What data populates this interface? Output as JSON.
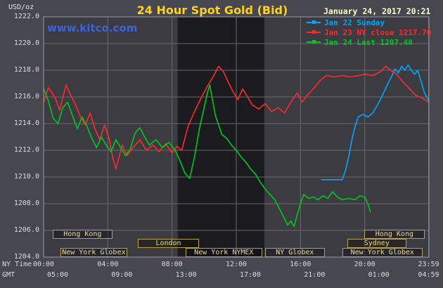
{
  "header": {
    "title": "24 Hour Spot Gold (Bid)",
    "unit": "USD/oz",
    "datetime": "January 24, 2017 20:21",
    "watermark": "www.kitco.com"
  },
  "axis": {
    "ny_label": "NY Time",
    "gmt_label": "GMT"
  },
  "colors": {
    "background": "#47474f",
    "plot_bg": "#3b3b41",
    "band_bg": "#1b1b1f",
    "grid": "#68686e",
    "plot_border": "#9a9aa2",
    "title": "#ffd21e",
    "watermark": "#3e63d8",
    "datetime": "#fcfcce",
    "tick_text": "#dcdcdc",
    "session_border": "#b9a14c",
    "session_text": "#ead989"
  },
  "chart_data": {
    "type": "line",
    "title": "24 Hour Spot Gold (Bid)",
    "ylabel": "USD/oz",
    "ylim": [
      1204.0,
      1222.0
    ],
    "ytick_step": 2.0,
    "grid": true,
    "legend_position": "top-right",
    "stats": {
      "ny_close": 1217.7,
      "last": 1207.4
    },
    "shaded_hours": [
      8.35,
      13.75
    ],
    "yticks": [
      {
        "v": 1204,
        "label": "1204.0"
      },
      {
        "v": 1206,
        "label": "1206.0"
      },
      {
        "v": 1208,
        "label": "1208.0"
      },
      {
        "v": 1210,
        "label": "1210.0"
      },
      {
        "v": 1212,
        "label": "1212.0"
      },
      {
        "v": 1214,
        "label": "1214.0"
      },
      {
        "v": 1216,
        "label": "1216.0"
      },
      {
        "v": 1218,
        "label": "1218.0"
      },
      {
        "v": 1220,
        "label": "1220.0"
      },
      {
        "v": 1222,
        "label": "1222.0"
      }
    ],
    "xticks": [
      {
        "h": 0,
        "ny": "00:00",
        "gmt": "05:00"
      },
      {
        "h": 4,
        "ny": "04:00",
        "gmt": "09:00"
      },
      {
        "h": 8,
        "ny": "08:00",
        "gmt": "13:00"
      },
      {
        "h": 12,
        "ny": "12:00",
        "gmt": "17:00"
      },
      {
        "h": 16,
        "ny": "16:00",
        "gmt": "21:00"
      },
      {
        "h": 20,
        "ny": "20:00",
        "gmt": "01:00"
      },
      {
        "h": 23.98,
        "ny": "23:59",
        "gmt": "04:59"
      }
    ],
    "sessions": [
      {
        "label": "Hong Kong",
        "row": 0,
        "start": 0.55,
        "end": 4.3
      },
      {
        "label": "Hong Kong",
        "row": 0,
        "start": 19.95,
        "end": 23.75
      },
      {
        "label": "London",
        "row": 1,
        "start": 5.85,
        "end": 9.7
      },
      {
        "label": "Sydney",
        "row": 1,
        "start": 18.9,
        "end": 22.6
      },
      {
        "label": "New York Globex",
        "row": 2,
        "start": 1.05,
        "end": 5.2
      },
      {
        "label": "New York NYMEX",
        "row": 2,
        "start": 8.85,
        "end": 13.6
      },
      {
        "label": "NY Globex",
        "row": 2,
        "start": 13.8,
        "end": 17.5
      },
      {
        "label": "New York Globex",
        "row": 2,
        "start": 18.6,
        "end": 23.6
      }
    ],
    "series": [
      {
        "name": "Jan 22 Sunday",
        "color": "#00a6ff",
        "points": [
          [
            17.3,
            1209.8
          ],
          [
            18.6,
            1209.8
          ],
          [
            18.8,
            1210.5
          ],
          [
            19.0,
            1211.5
          ],
          [
            19.2,
            1212.8
          ],
          [
            19.4,
            1213.8
          ],
          [
            19.6,
            1214.5
          ],
          [
            19.9,
            1214.7
          ],
          [
            20.2,
            1214.5
          ],
          [
            20.5,
            1214.8
          ],
          [
            20.8,
            1215.4
          ],
          [
            21.1,
            1216.1
          ],
          [
            21.4,
            1216.9
          ],
          [
            21.7,
            1217.6
          ],
          [
            21.9,
            1218.1
          ],
          [
            22.1,
            1217.8
          ],
          [
            22.3,
            1218.3
          ],
          [
            22.5,
            1218.0
          ],
          [
            22.7,
            1218.4
          ],
          [
            22.9,
            1218.0
          ],
          [
            23.1,
            1217.7
          ],
          [
            23.3,
            1218.0
          ],
          [
            23.5,
            1217.2
          ],
          [
            23.7,
            1216.4
          ],
          [
            23.9,
            1215.9
          ],
          [
            23.98,
            1215.7
          ]
        ]
      },
      {
        "name": "Jan 23 NY close 1217.70",
        "color": "#ff2a2a",
        "points": [
          [
            0,
            1215.6
          ],
          [
            0.3,
            1216.7
          ],
          [
            0.7,
            1216.0
          ],
          [
            1.0,
            1215.0
          ],
          [
            1.4,
            1216.9
          ],
          [
            1.7,
            1216.1
          ],
          [
            2.0,
            1215.4
          ],
          [
            2.3,
            1214.5
          ],
          [
            2.6,
            1213.9
          ],
          [
            2.9,
            1214.8
          ],
          [
            3.2,
            1213.6
          ],
          [
            3.5,
            1212.8
          ],
          [
            3.8,
            1213.9
          ],
          [
            4.1,
            1212.8
          ],
          [
            4.3,
            1211.5
          ],
          [
            4.5,
            1210.6
          ],
          [
            4.9,
            1212.4
          ],
          [
            5.2,
            1211.6
          ],
          [
            5.5,
            1212.1
          ],
          [
            6.0,
            1212.8
          ],
          [
            6.4,
            1212.0
          ],
          [
            6.8,
            1212.4
          ],
          [
            7.2,
            1211.9
          ],
          [
            7.6,
            1212.5
          ],
          [
            8.0,
            1211.8
          ],
          [
            8.3,
            1212.3
          ],
          [
            8.6,
            1212.0
          ],
          [
            9.0,
            1213.8
          ],
          [
            9.4,
            1214.9
          ],
          [
            9.8,
            1215.9
          ],
          [
            10.2,
            1216.8
          ],
          [
            10.6,
            1217.6
          ],
          [
            10.9,
            1218.3
          ],
          [
            11.2,
            1217.9
          ],
          [
            11.5,
            1217.1
          ],
          [
            11.8,
            1216.4
          ],
          [
            12.1,
            1215.8
          ],
          [
            12.4,
            1216.6
          ],
          [
            12.7,
            1216.0
          ],
          [
            13.0,
            1215.4
          ],
          [
            13.4,
            1215.1
          ],
          [
            13.8,
            1215.5
          ],
          [
            14.2,
            1214.9
          ],
          [
            14.6,
            1215.2
          ],
          [
            15.0,
            1214.8
          ],
          [
            15.4,
            1215.6
          ],
          [
            15.8,
            1216.3
          ],
          [
            16.1,
            1215.6
          ],
          [
            16.4,
            1216.1
          ],
          [
            16.8,
            1216.6
          ],
          [
            17.2,
            1217.2
          ],
          [
            17.6,
            1217.6
          ],
          [
            18.1,
            1217.5
          ],
          [
            18.6,
            1217.6
          ],
          [
            19.1,
            1217.5
          ],
          [
            19.6,
            1217.6
          ],
          [
            20.0,
            1217.7
          ],
          [
            20.5,
            1217.6
          ],
          [
            21.0,
            1217.9
          ],
          [
            21.3,
            1218.3
          ],
          [
            21.6,
            1218.0
          ],
          [
            22.0,
            1217.7
          ],
          [
            22.4,
            1217.1
          ],
          [
            22.8,
            1216.6
          ],
          [
            23.2,
            1216.1
          ],
          [
            23.6,
            1215.9
          ],
          [
            23.98,
            1215.6
          ]
        ]
      },
      {
        "name": "Jan 24 Last 1207.40",
        "color": "#00c81e",
        "points": [
          [
            0,
            1216.6
          ],
          [
            0.3,
            1215.7
          ],
          [
            0.6,
            1214.4
          ],
          [
            0.9,
            1214.0
          ],
          [
            1.2,
            1215.2
          ],
          [
            1.5,
            1215.6
          ],
          [
            1.8,
            1214.6
          ],
          [
            2.1,
            1213.6
          ],
          [
            2.4,
            1214.5
          ],
          [
            2.7,
            1213.8
          ],
          [
            3.0,
            1212.9
          ],
          [
            3.3,
            1212.2
          ],
          [
            3.6,
            1213.0
          ],
          [
            3.9,
            1212.4
          ],
          [
            4.2,
            1211.9
          ],
          [
            4.5,
            1212.8
          ],
          [
            4.8,
            1212.2
          ],
          [
            5.1,
            1211.6
          ],
          [
            5.4,
            1212.1
          ],
          [
            5.7,
            1213.3
          ],
          [
            6.0,
            1213.7
          ],
          [
            6.3,
            1213.0
          ],
          [
            6.6,
            1212.4
          ],
          [
            7.0,
            1212.8
          ],
          [
            7.4,
            1212.2
          ],
          [
            7.8,
            1212.6
          ],
          [
            8.2,
            1212.0
          ],
          [
            8.5,
            1211.2
          ],
          [
            8.8,
            1210.3
          ],
          [
            9.1,
            1209.9
          ],
          [
            9.4,
            1211.5
          ],
          [
            9.7,
            1213.6
          ],
          [
            10.0,
            1215.2
          ],
          [
            10.2,
            1216.3
          ],
          [
            10.35,
            1216.9
          ],
          [
            10.5,
            1215.9
          ],
          [
            10.7,
            1214.6
          ],
          [
            10.9,
            1213.9
          ],
          [
            11.1,
            1213.2
          ],
          [
            11.4,
            1212.9
          ],
          [
            11.7,
            1212.4
          ],
          [
            12.0,
            1212.0
          ],
          [
            12.3,
            1211.5
          ],
          [
            12.6,
            1211.1
          ],
          [
            12.9,
            1210.6
          ],
          [
            13.2,
            1210.2
          ],
          [
            13.5,
            1209.6
          ],
          [
            13.8,
            1209.1
          ],
          [
            14.1,
            1208.7
          ],
          [
            14.4,
            1208.3
          ],
          [
            14.7,
            1207.6
          ],
          [
            15.0,
            1206.9
          ],
          [
            15.2,
            1206.4
          ],
          [
            15.4,
            1206.7
          ],
          [
            15.6,
            1206.3
          ],
          [
            15.8,
            1207.2
          ],
          [
            16.0,
            1208.0
          ],
          [
            16.2,
            1208.7
          ],
          [
            16.5,
            1208.4
          ],
          [
            16.8,
            1208.5
          ],
          [
            17.1,
            1208.3
          ],
          [
            17.4,
            1208.6
          ],
          [
            17.7,
            1208.4
          ],
          [
            18.0,
            1208.9
          ],
          [
            18.3,
            1208.5
          ],
          [
            18.6,
            1208.3
          ],
          [
            19.0,
            1208.4
          ],
          [
            19.4,
            1208.3
          ],
          [
            19.7,
            1208.6
          ],
          [
            20.0,
            1208.5
          ],
          [
            20.2,
            1208.0
          ],
          [
            20.35,
            1207.4
          ]
        ]
      }
    ]
  }
}
